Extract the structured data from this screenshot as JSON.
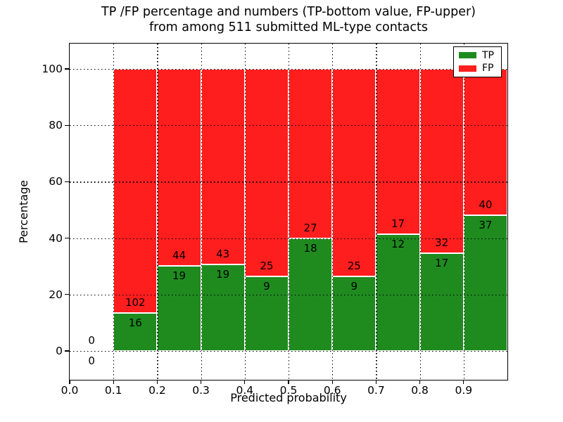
{
  "figure": {
    "title_line1": "TP /FP percentage and numbers (TP-bottom value, FP-upper)",
    "title_line2": "from among 511 submitted ML-type contacts",
    "xlabel": "Predicted probability",
    "ylabel": "Percentage"
  },
  "chart_data": {
    "type": "bar",
    "stacked": true,
    "normalized_to_percent": true,
    "title": "TP /FP percentage and numbers (TP-bottom value, FP-upper) from among 511 submitted ML-type contacts",
    "xlabel": "Predicted probability",
    "ylabel": "Percentage",
    "total_contacts": 511,
    "xlim": [
      0.0,
      1.0
    ],
    "ylim": [
      -10.8,
      109.2
    ],
    "x_bin_edges": [
      0.0,
      0.1,
      0.2,
      0.3,
      0.4,
      0.5,
      0.6,
      0.7,
      0.8,
      0.9,
      1.0
    ],
    "x_tick_labels": [
      "0.0",
      "0.1",
      "0.2",
      "0.3",
      "0.4",
      "0.5",
      "0.6",
      "0.7",
      "0.8",
      "0.9"
    ],
    "y_tick_values": [
      0,
      20,
      40,
      60,
      80,
      100
    ],
    "grid": {
      "on": true,
      "style": "dotted",
      "color": "#000000"
    },
    "legend": {
      "position": "upper right",
      "entries": [
        {
          "label": "TP",
          "color": "#1f8b1f"
        },
        {
          "label": "FP",
          "color": "#ff1e1e"
        }
      ]
    },
    "series": [
      {
        "name": "TP",
        "position": "bottom",
        "color": "#1f8b1f",
        "counts": [
          0,
          16,
          19,
          19,
          9,
          18,
          9,
          12,
          17,
          37
        ]
      },
      {
        "name": "FP",
        "position": "top",
        "color": "#ff1e1e",
        "counts": [
          0,
          102,
          44,
          43,
          25,
          27,
          25,
          17,
          32,
          40
        ]
      }
    ],
    "tp_percent_of_bin": [
      0.0,
      13.6,
      30.2,
      30.6,
      26.5,
      40.0,
      26.5,
      41.4,
      34.7,
      48.1
    ],
    "bar_edge_color": "#ffffff"
  }
}
